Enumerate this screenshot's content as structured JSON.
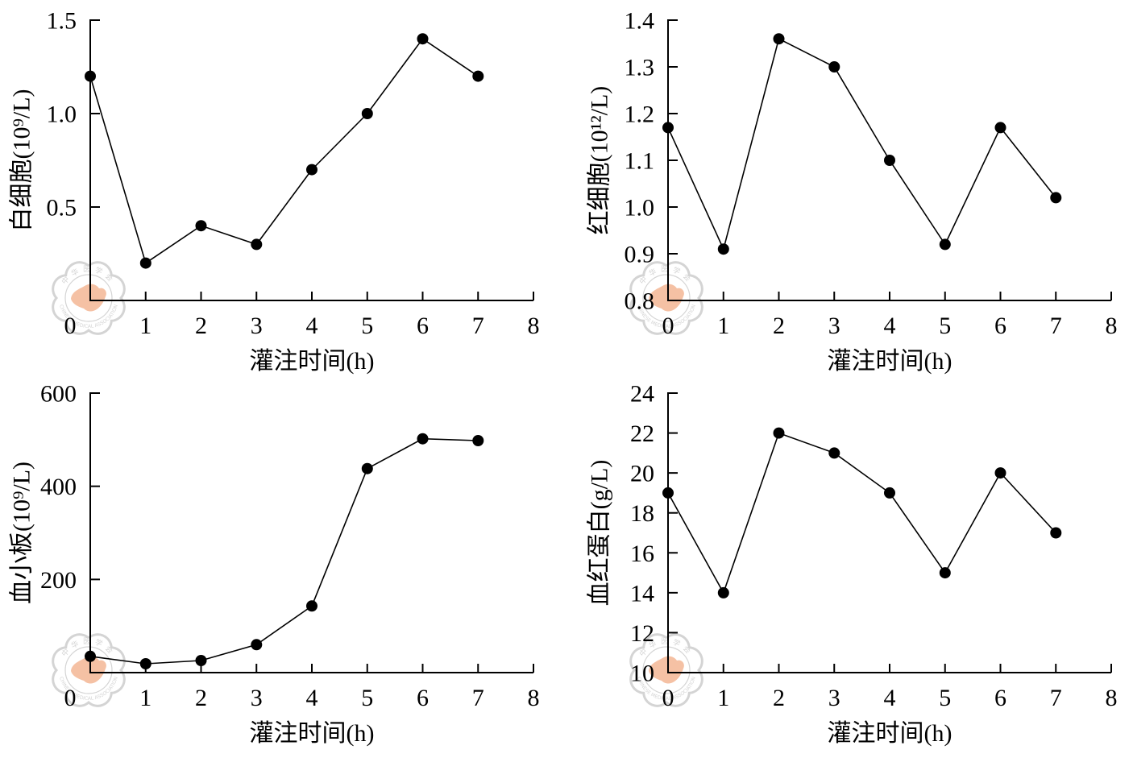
{
  "figure": {
    "background_color": "#ffffff",
    "ink_color": "#000000"
  },
  "watermark": {
    "text_cn": "中华医学会",
    "text_en": "CHINESE MEDICAL ASSOCIATION",
    "ring_color": "#c6c6c6",
    "map_color": "#f2ad86"
  },
  "chart_data": [
    {
      "type": "line",
      "xlabel": "灌注时间(h)",
      "ylabel": "白细胞(10⁹/L)",
      "x": [
        0,
        1,
        2,
        3,
        4,
        5,
        6,
        7
      ],
      "series": [
        {
          "values": [
            1.2,
            0.2,
            0.4,
            0.3,
            0.7,
            1.0,
            1.4,
            1.2
          ]
        }
      ],
      "xlim": [
        0,
        8
      ],
      "ylim": [
        0,
        1.5
      ],
      "x_ticks": [
        "0",
        "1",
        "2",
        "3",
        "4",
        "5",
        "6",
        "7",
        "8"
      ],
      "y_ticks": [
        "0.5",
        "1.0",
        "1.5"
      ],
      "grid": false
    },
    {
      "type": "line",
      "xlabel": "灌注时间(h)",
      "ylabel": "红细胞(10¹²/L)",
      "x": [
        0,
        1,
        2,
        3,
        4,
        5,
        6,
        7
      ],
      "series": [
        {
          "values": [
            1.17,
            0.91,
            1.36,
            1.3,
            1.1,
            0.92,
            1.17,
            1.02
          ]
        }
      ],
      "xlim": [
        0,
        8
      ],
      "ylim": [
        0.8,
        1.4
      ],
      "x_ticks": [
        "0",
        "1",
        "2",
        "3",
        "4",
        "5",
        "6",
        "7",
        "8"
      ],
      "y_ticks": [
        "0.8",
        "0.9",
        "1.0",
        "1.1",
        "1.2",
        "1.3",
        "1.4"
      ],
      "grid": false
    },
    {
      "type": "line",
      "xlabel": "灌注时间(h)",
      "ylabel": "血小板(10⁹/L)",
      "x": [
        0,
        1,
        2,
        3,
        4,
        5,
        6,
        7
      ],
      "series": [
        {
          "values": [
            35,
            19,
            26,
            60,
            143,
            438,
            502,
            498
          ]
        }
      ],
      "xlim": [
        0,
        8
      ],
      "ylim": [
        0,
        600
      ],
      "x_ticks": [
        "0",
        "1",
        "2",
        "3",
        "4",
        "5",
        "6",
        "7",
        "8"
      ],
      "y_ticks": [
        "200",
        "400",
        "600"
      ],
      "grid": false
    },
    {
      "type": "line",
      "xlabel": "灌注时间(h)",
      "ylabel": "血红蛋白(g/L)",
      "x": [
        0,
        1,
        2,
        3,
        4,
        5,
        6,
        7
      ],
      "series": [
        {
          "values": [
            19,
            14,
            22,
            21,
            19,
            15,
            20,
            17
          ]
        }
      ],
      "xlim": [
        0,
        8
      ],
      "ylim": [
        10,
        24
      ],
      "x_ticks": [
        "0",
        "1",
        "2",
        "3",
        "4",
        "5",
        "6",
        "7",
        "8"
      ],
      "y_ticks": [
        "10",
        "12",
        "14",
        "16",
        "18",
        "20",
        "22",
        "24"
      ],
      "grid": false
    }
  ]
}
